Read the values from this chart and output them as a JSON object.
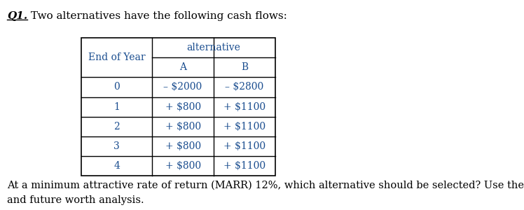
{
  "title_q": "Q1.",
  "title_text": " Two alternatives have the following cash flows:",
  "header_top": "alternative",
  "header_row": [
    "End of Year",
    "A",
    "B"
  ],
  "rows": [
    [
      "0",
      "– $2000",
      "– $2800"
    ],
    [
      "1",
      "+ $800",
      "+ $1100"
    ],
    [
      "2",
      "+ $800",
      "+ $1100"
    ],
    [
      "3",
      "+ $800",
      "+ $1100"
    ],
    [
      "4",
      "+ $800",
      "+ $1100"
    ]
  ],
  "footer_text": "At a minimum attractive rate of return (MARR) 12%, which alternative should be selected? Use the present\nand future worth analysis.",
  "text_color": "#1a4d8f",
  "title_color": "#000000",
  "bg_color": "#ffffff",
  "fig_width": 7.48,
  "fig_height": 3.0
}
